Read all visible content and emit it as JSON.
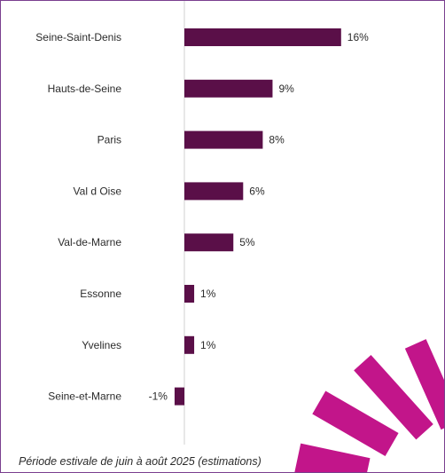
{
  "colors": {
    "bar": "#5a0f48",
    "axis": "#d0d0d0",
    "frame_border": "#7a3f8f",
    "deco_primary": "#c2158a",
    "deco_dark": "#4a0c3a"
  },
  "footnote": "Période estivale de juin à août 2025 (estimations)",
  "decoration": "magenta-starburst-logo",
  "chart_data": {
    "type": "bar",
    "orientation": "horizontal",
    "categories": [
      "Seine-Saint-Denis",
      "Hauts-de-Seine",
      "Paris",
      "Val d Oise",
      "Val-de-Marne",
      "Essonne",
      "Yvelines",
      "Seine-et-Marne"
    ],
    "values": [
      16,
      9,
      8,
      6,
      5,
      1,
      1,
      -1
    ],
    "value_labels": [
      "16%",
      "9%",
      "8%",
      "6%",
      "5%",
      "1%",
      "1%",
      "-1%"
    ],
    "unit": "%",
    "grid": false,
    "legend": "none"
  }
}
